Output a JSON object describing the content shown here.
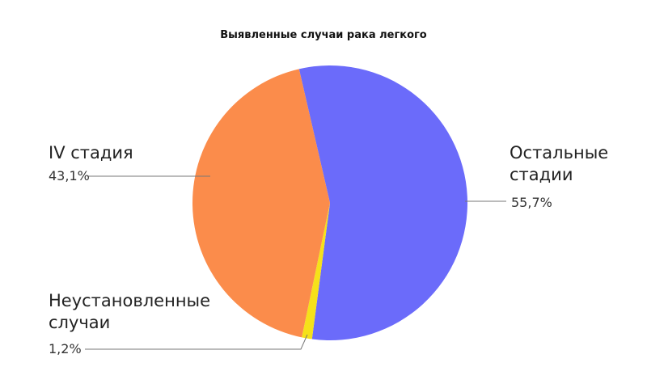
{
  "chart_data": {
    "type": "pie",
    "title": "Выявленные случаи рака легкого",
    "categories": [
      "Остальные стадии",
      "Неустановленные случаи",
      "IV стадия"
    ],
    "values": [
      55.7,
      1.2,
      43.1
    ],
    "value_labels": [
      "55,7%",
      "1,2%",
      "43,1%"
    ],
    "colors": [
      "#6b6bfa",
      "#f5e11a",
      "#fb8c4b"
    ]
  }
}
